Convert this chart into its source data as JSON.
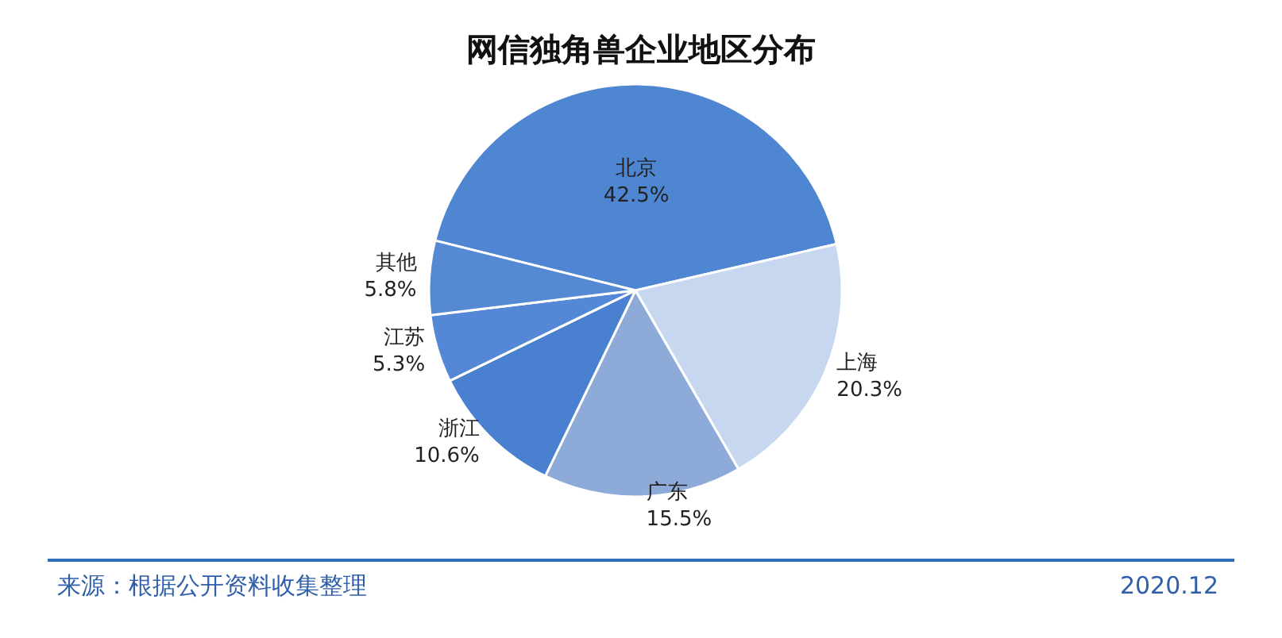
{
  "chart_data": {
    "type": "pie",
    "title": "网信独角兽企业地区分布",
    "categories": [
      "北京",
      "上海",
      "广东",
      "浙江",
      "江苏",
      "其他"
    ],
    "values": [
      42.5,
      20.3,
      15.5,
      10.6,
      5.3,
      5.8
    ],
    "colors": [
      "#4f86d2",
      "#c6d7ef",
      "#8eaad8",
      "#4a80d0",
      "#5488d6",
      "#5589d4"
    ],
    "value_labels": [
      "42.5%",
      "20.3%",
      "15.5%",
      "10.6%",
      "5.3%",
      "5.8%"
    ],
    "annotations": [
      "来源：根据公开资料收集整理",
      "2020.12"
    ]
  }
}
